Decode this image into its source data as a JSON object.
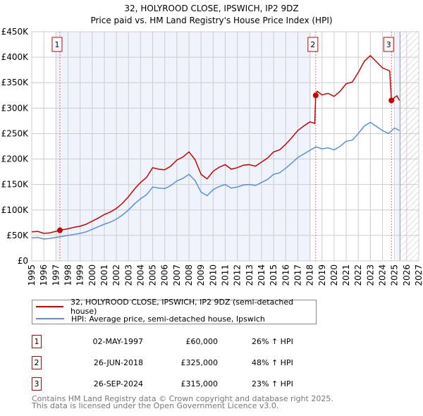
{
  "chart_data": {
    "type": "line",
    "title": "32, HOLYROOD CLOSE, IPSWICH, IP2 9DZ",
    "subtitle": "Price paid vs. HM Land Registry's House Price Index (HPI)",
    "xlim": [
      1995,
      2027
    ],
    "ylim": [
      0,
      450000
    ],
    "y_ticks": [
      {
        "v": 0,
        "label": "£0"
      },
      {
        "v": 50000,
        "label": "£50K"
      },
      {
        "v": 100000,
        "label": "£100K"
      },
      {
        "v": 150000,
        "label": "£150K"
      },
      {
        "v": 200000,
        "label": "£200K"
      },
      {
        "v": 250000,
        "label": "£250K"
      },
      {
        "v": 300000,
        "label": "£300K"
      },
      {
        "v": 350000,
        "label": "£350K"
      },
      {
        "v": 400000,
        "label": "£400K"
      },
      {
        "v": 450000,
        "label": "£450K"
      }
    ],
    "x_ticks": [
      "1995",
      "1996",
      "1997",
      "1998",
      "1999",
      "2000",
      "2001",
      "2002",
      "2003",
      "2004",
      "2005",
      "2006",
      "2007",
      "2008",
      "2009",
      "2010",
      "2011",
      "2012",
      "2013",
      "2014",
      "2015",
      "2016",
      "2017",
      "2018",
      "2019",
      "2020",
      "2021",
      "2022",
      "2023",
      "2024",
      "2025",
      "2026",
      "2027"
    ],
    "grid": true,
    "colors": {
      "property": "#cc0000",
      "hpi": "#5b8fd6",
      "shade": "#eef3fc"
    },
    "shaded_ranges": [
      [
        1997.0,
        2018.1
      ],
      [
        2025.1,
        2025.45
      ]
    ],
    "future_hatch_from": 2025.45,
    "series": [
      {
        "name": "32, HOLYROOD CLOSE, IPSWICH, IP2 9DZ (semi-detached house)",
        "color": "#cc0000",
        "x": [
          1995,
          1995.5,
          1996,
          1996.5,
          1997,
          1997.33,
          1997.5,
          1998,
          1998.5,
          1999,
          1999.5,
          2000,
          2000.5,
          2001,
          2001.5,
          2002,
          2002.5,
          2003,
          2003.5,
          2004,
          2004.5,
          2005,
          2005.5,
          2006,
          2006.5,
          2007,
          2007.5,
          2008,
          2008.5,
          2009,
          2009.5,
          2010,
          2010.5,
          2011,
          2011.5,
          2012,
          2012.5,
          2013,
          2013.5,
          2014,
          2014.5,
          2015,
          2015.5,
          2016,
          2016.5,
          2017,
          2017.5,
          2018,
          2018.4,
          2018.48,
          2018.6,
          2019,
          2019.5,
          2020,
          2020.5,
          2021,
          2021.5,
          2022,
          2022.5,
          2023,
          2023.5,
          2024,
          2024.6,
          2024.74,
          2025,
          2025.2,
          2025.4
        ],
        "y": [
          57,
          58,
          54,
          55,
          58,
          60,
          61,
          63,
          66,
          68,
          72,
          78,
          84,
          91,
          96,
          103,
          113,
          126,
          141,
          154,
          164,
          183,
          180,
          179,
          186,
          198,
          204,
          214,
          199,
          170,
          161,
          176,
          184,
          189,
          180,
          183,
          188,
          189,
          186,
          194,
          202,
          214,
          218,
          229,
          242,
          256,
          265,
          273,
          270,
          325,
          333,
          326,
          329,
          323,
          333,
          348,
          351,
          370,
          392,
          403,
          391,
          379,
          373,
          315,
          321,
          324,
          315
        ]
      },
      {
        "name": "HPI: Average price, semi-detached house, Ipswich",
        "color": "#5b8fd6",
        "x": [
          1995,
          1995.5,
          1996,
          1996.5,
          1997,
          1997.5,
          1998,
          1998.5,
          1999,
          1999.5,
          2000,
          2000.5,
          2001,
          2001.5,
          2002,
          2002.5,
          2003,
          2003.5,
          2004,
          2004.5,
          2005,
          2005.5,
          2006,
          2006.5,
          2007,
          2007.5,
          2008,
          2008.5,
          2009,
          2009.5,
          2010,
          2010.5,
          2011,
          2011.5,
          2012,
          2012.5,
          2013,
          2013.5,
          2014,
          2014.5,
          2015,
          2015.5,
          2016,
          2016.5,
          2017,
          2017.5,
          2018,
          2018.5,
          2019,
          2019.5,
          2020,
          2020.5,
          2021,
          2021.5,
          2022,
          2022.5,
          2023,
          2023.5,
          2024,
          2024.5,
          2025,
          2025.4
        ],
        "y": [
          45,
          46,
          43,
          44,
          46,
          48,
          50,
          52,
          54,
          57,
          62,
          67,
          72,
          76,
          82,
          90,
          100,
          112,
          122,
          130,
          145,
          143,
          142,
          148,
          157,
          162,
          170,
          158,
          135,
          128,
          140,
          146,
          150,
          143,
          145,
          149,
          150,
          148,
          154,
          160,
          170,
          173,
          182,
          192,
          203,
          210,
          217,
          224,
          220,
          222,
          218,
          225,
          235,
          237,
          250,
          265,
          272,
          264,
          256,
          250,
          261,
          256
        ]
      }
    ],
    "sales": [
      {
        "id": "1",
        "x": 1997.33,
        "y": 60,
        "date": "02-MAY-1997",
        "price": "£60,000",
        "hpi": "26% ↑ HPI"
      },
      {
        "id": "2",
        "x": 2018.48,
        "y": 325,
        "date": "26-JUN-2018",
        "price": "£325,000",
        "hpi": "48% ↑ HPI"
      },
      {
        "id": "3",
        "x": 2024.74,
        "y": 315,
        "date": "26-SEP-2024",
        "price": "£315,000",
        "hpi": "23% ↑ HPI"
      }
    ],
    "legend": {
      "placement": "bottom",
      "items": [
        "32, HOLYROOD CLOSE, IPSWICH, IP2 9DZ (semi-detached house)",
        "HPI: Average price, semi-detached house, Ipswich"
      ]
    }
  },
  "footer": {
    "line1": "Contains HM Land Registry data © Crown copyright and database right 2025.",
    "line2": "This data is licensed under the Open Government Licence v3.0."
  }
}
